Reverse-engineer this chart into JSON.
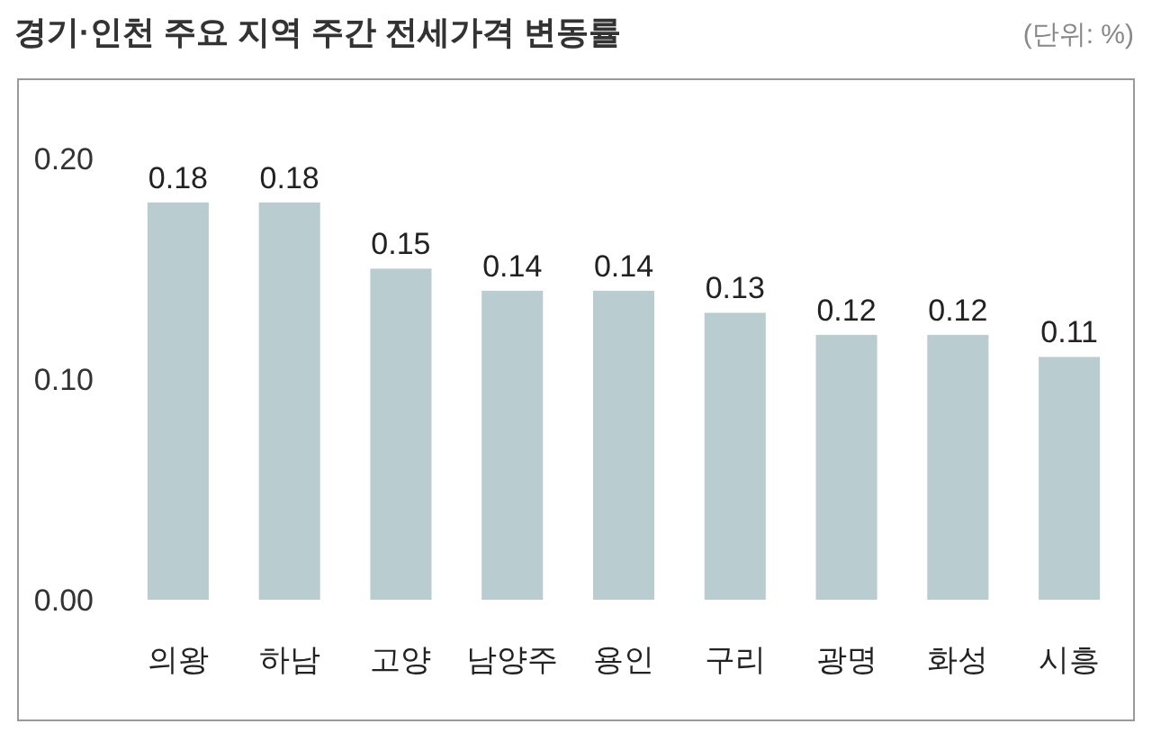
{
  "chart_data": {
    "type": "bar",
    "title": "경기·인천 주요 지역 주간 전세가격 변동률",
    "annotations": [
      "(단위: %)"
    ],
    "categories": [
      "의왕",
      "하남",
      "고양",
      "남양주",
      "용인",
      "구리",
      "광명",
      "화성",
      "시흥"
    ],
    "values": [
      0.18,
      0.18,
      0.15,
      0.14,
      0.14,
      0.13,
      0.12,
      0.12,
      0.11
    ],
    "color": "#b9cdd1",
    "ylim": [
      0,
      0.235
    ],
    "yticks": [
      {
        "value": 0,
        "label": "0.00"
      },
      {
        "value": 0.1,
        "label": "0.10"
      },
      {
        "value": 0.2,
        "label": "0.20"
      }
    ],
    "data_labels": true
  }
}
